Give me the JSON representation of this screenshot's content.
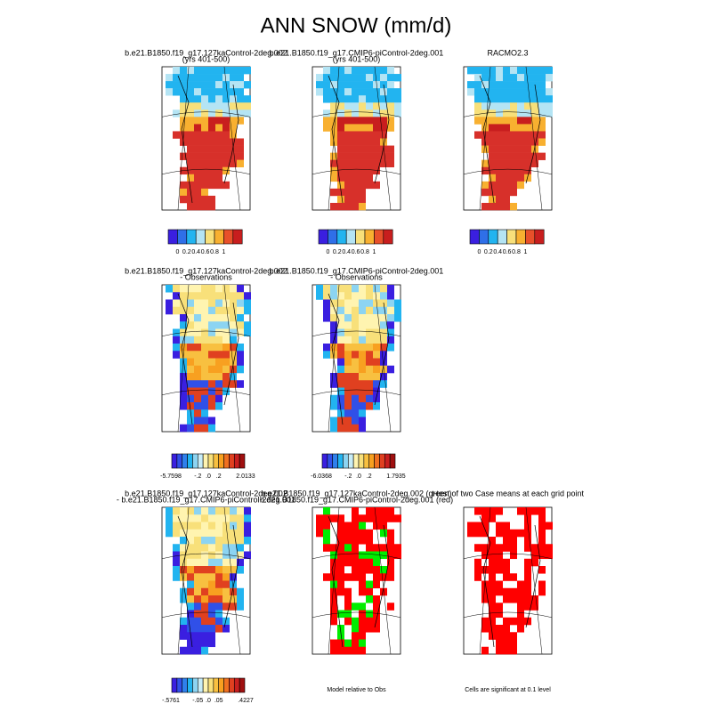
{
  "title": "ANN SNOW (mm/d)",
  "rows": [
    {
      "panels": [
        {
          "title": [
            "b.e21.B1850.f19_g17.127kaControl-2deg.002",
            "(yrs 401-500)"
          ],
          "colorbar": {
            "colors": [
              "#3a1fe0",
              "#2f6fe8",
              "#22b4f0",
              "#b4e4f4",
              "#f8e07a",
              "#f8b030",
              "#e8502a",
              "#c81e1e"
            ],
            "labels": [
              "0",
              "0.2",
              "0.4",
              "0.6",
              "0.8",
              "1"
            ]
          }
        },
        {
          "title": [
            "b.e21.B1850.f19_g17.CMIP6-piControl-2deg.001",
            "(yrs 401-500)"
          ],
          "colorbar": {
            "colors": [
              "#3a1fe0",
              "#2f6fe8",
              "#22b4f0",
              "#b4e4f4",
              "#f8e07a",
              "#f8b030",
              "#e8502a",
              "#c81e1e"
            ],
            "labels": [
              "0",
              "0.2",
              "0.4",
              "0.6",
              "0.8",
              "1"
            ]
          }
        },
        {
          "title": [
            "RACMO2.3"
          ],
          "colorbar": {
            "colors": [
              "#3a1fe0",
              "#2f6fe8",
              "#22b4f0",
              "#b4e4f4",
              "#f8e07a",
              "#f8b030",
              "#e8502a",
              "#c81e1e"
            ],
            "labels": [
              "0",
              "0.2",
              "0.4",
              "0.6",
              "0.8",
              "1"
            ]
          }
        }
      ]
    },
    {
      "panels": [
        {
          "title": [
            "b.e21.B1850.f19_g17.127kaControl-2deg.002",
            "- Observations"
          ],
          "colorbar": {
            "colors": [
              "#3a1fe0",
              "#3050e8",
              "#2f80ec",
              "#22b4f0",
              "#8cd4f2",
              "#c8ecf6",
              "#fff4b0",
              "#f8e07a",
              "#f8c040",
              "#f8a020",
              "#f07020",
              "#e04020",
              "#c81e1e",
              "#a01010"
            ],
            "labels": [
              "-5.7598",
              "-.2",
              ".0",
              ".2",
              "2.0133"
            ]
          }
        },
        {
          "title": [
            "b.e21.B1850.f19_g17.CMIP6-piControl-2deg.001",
            "- Observations"
          ],
          "colorbar": {
            "colors": [
              "#3a1fe0",
              "#3050e8",
              "#2f80ec",
              "#22b4f0",
              "#8cd4f2",
              "#c8ecf6",
              "#fff4b0",
              "#f8e07a",
              "#f8c040",
              "#f8a020",
              "#f07020",
              "#e04020",
              "#c81e1e",
              "#a01010"
            ],
            "labels": [
              "-6.0368",
              "-.2",
              ".0",
              ".2",
              "1.7935"
            ]
          }
        }
      ]
    },
    {
      "panels": [
        {
          "title": [
            "b.e21.B1850.f19_g17.127kaControl-2deg.002",
            "- b.e21.B1850.f19_g17.CMIP6-piControl-2deg.001"
          ],
          "colorbar": {
            "colors": [
              "#3a1fe0",
              "#3050e8",
              "#2f80ec",
              "#22b4f0",
              "#8cd4f2",
              "#c8ecf6",
              "#fff4b0",
              "#f8e07a",
              "#f8c040",
              "#f8a020",
              "#f07020",
              "#e04020",
              "#c81e1e",
              "#a01010"
            ],
            "labels": [
              "-.5761",
              "-.05",
              ".0",
              ".05",
              ".4227"
            ]
          }
        },
        {
          "title": [
            "b.e21.B1850.f19_g17.127kaControl-2deg.002 (green)",
            "b.e21.B1850.f19_g17.CMIP6-piControl-2deg.001 (red)"
          ],
          "note": "Model relative to Obs"
        },
        {
          "title": [
            "t-test of two Case means at each grid point"
          ],
          "note": "Cells are significant at 0.1 level"
        }
      ]
    }
  ]
}
